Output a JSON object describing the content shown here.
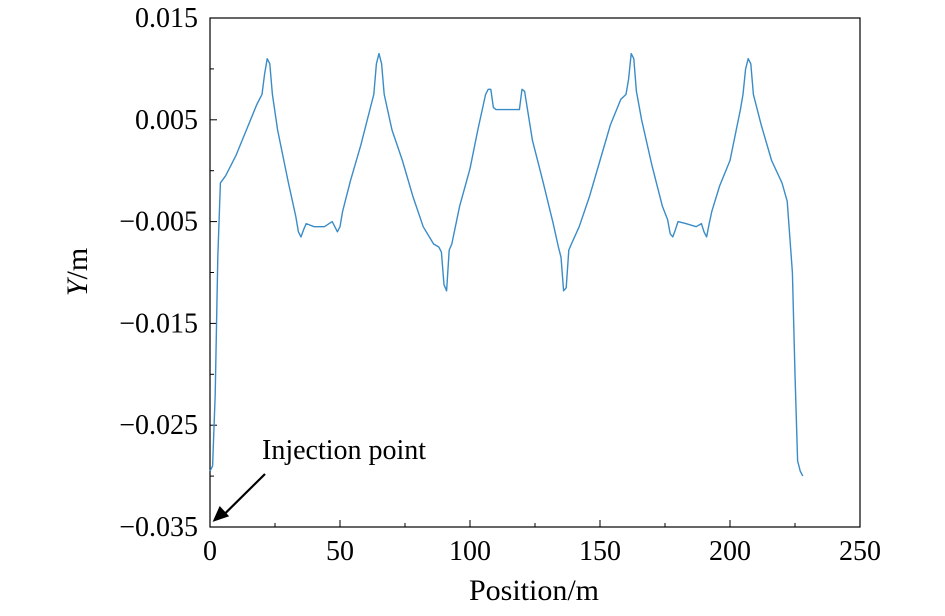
{
  "chart_data": {
    "type": "line",
    "title": "",
    "xlabel": "Position/m",
    "ylabel_var": "Y",
    "ylabel_unit": "/m",
    "xlim": [
      0,
      250
    ],
    "ylim": [
      -0.035,
      0.015
    ],
    "xticks": [
      "0",
      "50",
      "100",
      "150",
      "200",
      "250"
    ],
    "yticks": [
      "0.015",
      "0.005",
      "−0.005",
      "−0.015",
      "−0.025",
      "−0.035"
    ],
    "grid": false,
    "legend": "none",
    "annotation": {
      "text": "Injection point",
      "target": [
        1,
        -0.0345
      ]
    },
    "series": [
      {
        "color": "#3a8cc7",
        "points": [
          [
            0,
            -0.0295
          ],
          [
            1,
            -0.029
          ],
          [
            2,
            -0.022
          ],
          [
            3,
            -0.0085
          ],
          [
            4,
            -0.0012
          ],
          [
            6,
            -0.0005
          ],
          [
            10,
            0.0015
          ],
          [
            14,
            0.004
          ],
          [
            18,
            0.0065
          ],
          [
            20,
            0.0075
          ],
          [
            21,
            0.0095
          ],
          [
            22,
            0.011
          ],
          [
            23,
            0.0105
          ],
          [
            24,
            0.0075
          ],
          [
            26,
            0.004
          ],
          [
            30,
            -0.001
          ],
          [
            33,
            -0.0045
          ],
          [
            34,
            -0.006
          ],
          [
            35,
            -0.0065
          ],
          [
            36,
            -0.0058
          ],
          [
            37,
            -0.0052
          ],
          [
            40,
            -0.0055
          ],
          [
            44,
            -0.0055
          ],
          [
            47,
            -0.005
          ],
          [
            48,
            -0.0055
          ],
          [
            49,
            -0.006
          ],
          [
            50,
            -0.0055
          ],
          [
            51,
            -0.004
          ],
          [
            54,
            -0.001
          ],
          [
            58,
            0.0025
          ],
          [
            62,
            0.0065
          ],
          [
            63,
            0.0075
          ],
          [
            64,
            0.0105
          ],
          [
            65,
            0.0115
          ],
          [
            66,
            0.0105
          ],
          [
            67,
            0.0075
          ],
          [
            70,
            0.004
          ],
          [
            74,
            0.001
          ],
          [
            78,
            -0.0025
          ],
          [
            82,
            -0.0055
          ],
          [
            86,
            -0.0072
          ],
          [
            88,
            -0.0075
          ],
          [
            89,
            -0.008
          ],
          [
            90,
            -0.0112
          ],
          [
            91,
            -0.0118
          ],
          [
            92,
            -0.0078
          ],
          [
            93,
            -0.0072
          ],
          [
            96,
            -0.0035
          ],
          [
            100,
            0.0002
          ],
          [
            103,
            0.004
          ],
          [
            106,
            0.0075
          ],
          [
            107,
            0.008
          ],
          [
            108,
            0.008
          ],
          [
            109,
            0.0062
          ],
          [
            110,
            0.006
          ],
          [
            119,
            0.006
          ],
          [
            120,
            0.008
          ],
          [
            121,
            0.0078
          ],
          [
            122,
            0.0062
          ],
          [
            124,
            0.003
          ],
          [
            128,
            -0.001
          ],
          [
            132,
            -0.0052
          ],
          [
            134,
            -0.0075
          ],
          [
            135,
            -0.0085
          ],
          [
            136,
            -0.0118
          ],
          [
            137,
            -0.0115
          ],
          [
            138,
            -0.0078
          ],
          [
            139,
            -0.0072
          ],
          [
            142,
            -0.0055
          ],
          [
            146,
            -0.0025
          ],
          [
            150,
            0.001
          ],
          [
            154,
            0.0045
          ],
          [
            158,
            0.007
          ],
          [
            160,
            0.0075
          ],
          [
            161,
            0.009
          ],
          [
            162,
            0.0115
          ],
          [
            163,
            0.011
          ],
          [
            164,
            0.0078
          ],
          [
            166,
            0.005
          ],
          [
            170,
            0.0005
          ],
          [
            174,
            -0.0035
          ],
          [
            176,
            -0.0048
          ],
          [
            177,
            -0.0062
          ],
          [
            178,
            -0.0065
          ],
          [
            179,
            -0.0058
          ],
          [
            180,
            -0.005
          ],
          [
            183,
            -0.0052
          ],
          [
            187,
            -0.0055
          ],
          [
            189,
            -0.0052
          ],
          [
            190,
            -0.006
          ],
          [
            191,
            -0.0065
          ],
          [
            192,
            -0.0052
          ],
          [
            193,
            -0.004
          ],
          [
            196,
            -0.0015
          ],
          [
            200,
            0.001
          ],
          [
            204,
            0.006
          ],
          [
            205,
            0.0075
          ],
          [
            206,
            0.01
          ],
          [
            207,
            0.011
          ],
          [
            208,
            0.0105
          ],
          [
            209,
            0.0075
          ],
          [
            212,
            0.0045
          ],
          [
            216,
            0.001
          ],
          [
            220,
            -0.0012
          ],
          [
            222,
            -0.003
          ],
          [
            224,
            -0.01
          ],
          [
            225,
            -0.02
          ],
          [
            226,
            -0.0285
          ],
          [
            227,
            -0.0295
          ],
          [
            228,
            -0.03
          ]
        ]
      }
    ]
  }
}
